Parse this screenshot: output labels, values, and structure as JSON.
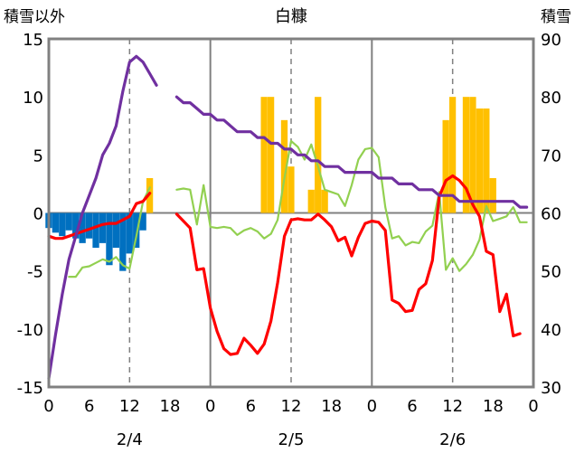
{
  "chart_data": {
    "type": "bar+line",
    "title": "白糠",
    "ylabel_left": "積雪以外",
    "ylabel_right": "積雪",
    "ylim_left": [
      -15,
      15
    ],
    "ylim_right": [
      30,
      90
    ],
    "yticks_left": [
      "15",
      "10",
      "5",
      "0",
      "-5",
      "-10",
      "-15"
    ],
    "yticks_right": [
      "90",
      "80",
      "70",
      "60",
      "50",
      "40",
      "30"
    ],
    "x_range_hours": [
      0,
      72
    ],
    "xtick_labels": [
      "0",
      "6",
      "12",
      "18",
      "0",
      "6",
      "12",
      "18",
      "0",
      "6",
      "12",
      "18",
      "0"
    ],
    "date_labels": [
      "2/4",
      "2/5",
      "2/6"
    ],
    "series": [
      {
        "name": "snow_depth_line",
        "axis": "right",
        "color": "#7030A0",
        "segments": [
          [
            [
              0,
              31.5
            ],
            [
              1,
              39
            ],
            [
              2,
              46
            ],
            [
              3,
              52
            ],
            [
              4,
              56
            ],
            [
              5,
              60
            ],
            [
              6,
              63
            ],
            [
              7,
              66
            ],
            [
              8,
              70
            ],
            [
              9,
              72
            ],
            [
              10,
              75
            ],
            [
              11,
              81
            ],
            [
              12,
              86
            ],
            [
              13,
              87
            ],
            [
              14,
              86
            ],
            [
              15,
              84
            ],
            [
              16,
              82
            ]
          ],
          [
            [
              19,
              80
            ],
            [
              20,
              79
            ],
            [
              21,
              79
            ],
            [
              22,
              78
            ],
            [
              23,
              77
            ],
            [
              24,
              77
            ],
            [
              25,
              76
            ],
            [
              26,
              76
            ],
            [
              27,
              75
            ],
            [
              28,
              74
            ],
            [
              29,
              74
            ],
            [
              30,
              74
            ],
            [
              31,
              73
            ],
            [
              32,
              73
            ],
            [
              33,
              72
            ],
            [
              34,
              72
            ],
            [
              35,
              71
            ],
            [
              36,
              71
            ],
            [
              37,
              70
            ],
            [
              38,
              70
            ],
            [
              39,
              69
            ],
            [
              40,
              69
            ],
            [
              41,
              68
            ],
            [
              42,
              68
            ],
            [
              43,
              68
            ],
            [
              44,
              67
            ],
            [
              45,
              67
            ],
            [
              46,
              67
            ],
            [
              47,
              67
            ],
            [
              48,
              67
            ],
            [
              49,
              66
            ],
            [
              50,
              66
            ],
            [
              51,
              66
            ],
            [
              52,
              65
            ],
            [
              53,
              65
            ],
            [
              54,
              65
            ],
            [
              55,
              64
            ],
            [
              56,
              64
            ],
            [
              57,
              64
            ],
            [
              58,
              63
            ],
            [
              59,
              63
            ],
            [
              60,
              63
            ],
            [
              61,
              62
            ],
            [
              62,
              62
            ],
            [
              63,
              62
            ],
            [
              64,
              62
            ],
            [
              65,
              62
            ],
            [
              66,
              62
            ],
            [
              67,
              62
            ],
            [
              68,
              62
            ],
            [
              69,
              62
            ],
            [
              70,
              61
            ],
            [
              71,
              61
            ]
          ]
        ]
      },
      {
        "name": "green_line",
        "axis": "left",
        "color": "#92D050",
        "segments": [
          [
            [
              3,
              -5.5
            ],
            [
              4,
              -5.5
            ],
            [
              5,
              -4.7
            ],
            [
              6,
              -4.6
            ],
            [
              7,
              -4.3
            ],
            [
              8,
              -4.0
            ],
            [
              9,
              -4.2
            ],
            [
              10,
              -3.8
            ],
            [
              11,
              -4.5
            ],
            [
              12,
              -4.8
            ],
            [
              13,
              -2.0
            ],
            [
              14,
              1.0
            ],
            [
              15,
              2.2
            ]
          ],
          [
            [
              19,
              2.0
            ],
            [
              20,
              2.1
            ],
            [
              21,
              2.0
            ],
            [
              22,
              -1.0
            ],
            [
              23,
              2.4
            ],
            [
              24,
              -1.2
            ],
            [
              25,
              -1.3
            ],
            [
              26,
              -1.2
            ],
            [
              27,
              -1.3
            ],
            [
              28,
              -1.9
            ],
            [
              29,
              -1.5
            ],
            [
              30,
              -1.3
            ],
            [
              31,
              -1.6
            ],
            [
              32,
              -2.2
            ],
            [
              33,
              -1.8
            ],
            [
              34,
              -0.6
            ],
            [
              35,
              3.0
            ],
            [
              36,
              6.2
            ],
            [
              37,
              5.7
            ],
            [
              38,
              4.6
            ],
            [
              39,
              5.9
            ],
            [
              40,
              4.0
            ],
            [
              41,
              2.0
            ],
            [
              42,
              1.8
            ],
            [
              43,
              1.6
            ],
            [
              44,
              0.6
            ],
            [
              45,
              2.4
            ],
            [
              46,
              4.6
            ],
            [
              47,
              5.5
            ],
            [
              48,
              5.6
            ],
            [
              49,
              4.8
            ],
            [
              50,
              0.5
            ],
            [
              51,
              -2.2
            ],
            [
              52,
              -2.0
            ],
            [
              53,
              -2.8
            ],
            [
              54,
              -2.5
            ],
            [
              55,
              -2.6
            ],
            [
              56,
              -1.6
            ],
            [
              57,
              -1.1
            ],
            [
              58,
              1.8
            ],
            [
              59,
              -4.9
            ],
            [
              60,
              -3.9
            ],
            [
              61,
              -5.0
            ],
            [
              62,
              -4.4
            ],
            [
              63,
              -3.6
            ],
            [
              64,
              -2.3
            ],
            [
              65,
              0.6
            ],
            [
              66,
              -0.7
            ],
            [
              67,
              -0.5
            ],
            [
              68,
              -0.3
            ],
            [
              69,
              0.5
            ],
            [
              70,
              -0.8
            ],
            [
              71,
              -0.8
            ]
          ]
        ]
      },
      {
        "name": "red_line",
        "axis": "left",
        "color": "#FF0000",
        "segments": [
          [
            [
              0,
              -2.0
            ],
            [
              1,
              -2.2
            ],
            [
              2,
              -2.2
            ],
            [
              3,
              -2.0
            ],
            [
              4,
              -1.8
            ],
            [
              5,
              -1.6
            ],
            [
              6,
              -1.4
            ],
            [
              7,
              -1.2
            ],
            [
              8,
              -1.0
            ],
            [
              9,
              -0.9
            ],
            [
              10,
              -0.9
            ],
            [
              11,
              -0.6
            ],
            [
              12,
              -0.3
            ],
            [
              13,
              0.8
            ],
            [
              14,
              1.0
            ],
            [
              15,
              1.7
            ]
          ],
          [
            [
              19,
              -0.1
            ],
            [
              20,
              -0.7
            ],
            [
              21,
              -1.3
            ],
            [
              22,
              -4.9
            ],
            [
              23,
              -4.8
            ],
            [
              24,
              -8.2
            ],
            [
              25,
              -10.2
            ],
            [
              26,
              -11.7
            ],
            [
              27,
              -12.2
            ],
            [
              28,
              -12.1
            ],
            [
              29,
              -10.8
            ],
            [
              30,
              -11.4
            ],
            [
              31,
              -12.1
            ],
            [
              32,
              -11.3
            ],
            [
              33,
              -9.3
            ],
            [
              34,
              -6.0
            ],
            [
              35,
              -2.0
            ],
            [
              36,
              -0.6
            ],
            [
              37,
              -0.5
            ],
            [
              38,
              -0.6
            ],
            [
              39,
              -0.6
            ],
            [
              40,
              -0.1
            ],
            [
              41,
              -0.6
            ],
            [
              42,
              -1.2
            ],
            [
              43,
              -2.4
            ],
            [
              44,
              -2.1
            ],
            [
              45,
              -3.7
            ],
            [
              46,
              -2.1
            ],
            [
              47,
              -0.9
            ],
            [
              48,
              -0.7
            ],
            [
              49,
              -0.8
            ],
            [
              50,
              -1.5
            ],
            [
              51,
              -7.5
            ],
            [
              52,
              -7.8
            ],
            [
              53,
              -8.5
            ],
            [
              54,
              -8.4
            ],
            [
              55,
              -6.6
            ],
            [
              56,
              -6.1
            ],
            [
              57,
              -4.1
            ],
            [
              58,
              1.4
            ],
            [
              59,
              2.8
            ],
            [
              60,
              3.2
            ],
            [
              61,
              2.8
            ],
            [
              62,
              2.1
            ],
            [
              63,
              0.7
            ],
            [
              64,
              -0.3
            ],
            [
              65,
              -3.3
            ],
            [
              66,
              -3.6
            ],
            [
              67,
              -8.5
            ],
            [
              68,
              -7.0
            ],
            [
              69,
              -10.6
            ],
            [
              70,
              -10.4
            ]
          ]
        ]
      }
    ],
    "bars": [
      {
        "name": "orange_bars",
        "axis": "left",
        "color": "#FFC000",
        "points": [
          [
            15,
            3.0
          ],
          [
            32,
            10.0
          ],
          [
            33,
            10.0
          ],
          [
            35,
            8.0
          ],
          [
            36,
            4.0
          ],
          [
            39,
            2.0
          ],
          [
            40,
            10.0
          ],
          [
            41,
            2.0
          ],
          [
            59,
            8.0
          ],
          [
            60,
            10.0
          ],
          [
            62,
            10.0
          ],
          [
            63,
            10.0
          ],
          [
            64,
            9.0
          ],
          [
            65,
            9.0
          ],
          [
            66,
            3.0
          ]
        ]
      },
      {
        "name": "blue_bars",
        "axis": "left",
        "color": "#0070C0",
        "points": [
          [
            0,
            -1.3
          ],
          [
            1,
            -1.7
          ],
          [
            2,
            -2.0
          ],
          [
            3,
            -1.5
          ],
          [
            4,
            -2.2
          ],
          [
            5,
            -2.6
          ],
          [
            6,
            -2.2
          ],
          [
            7,
            -3.0
          ],
          [
            8,
            -2.6
          ],
          [
            9,
            -4.5
          ],
          [
            10,
            -3.0
          ],
          [
            11,
            -5.0
          ],
          [
            12,
            -3.5
          ],
          [
            13,
            -3.0
          ],
          [
            14,
            -1.5
          ]
        ]
      }
    ]
  }
}
